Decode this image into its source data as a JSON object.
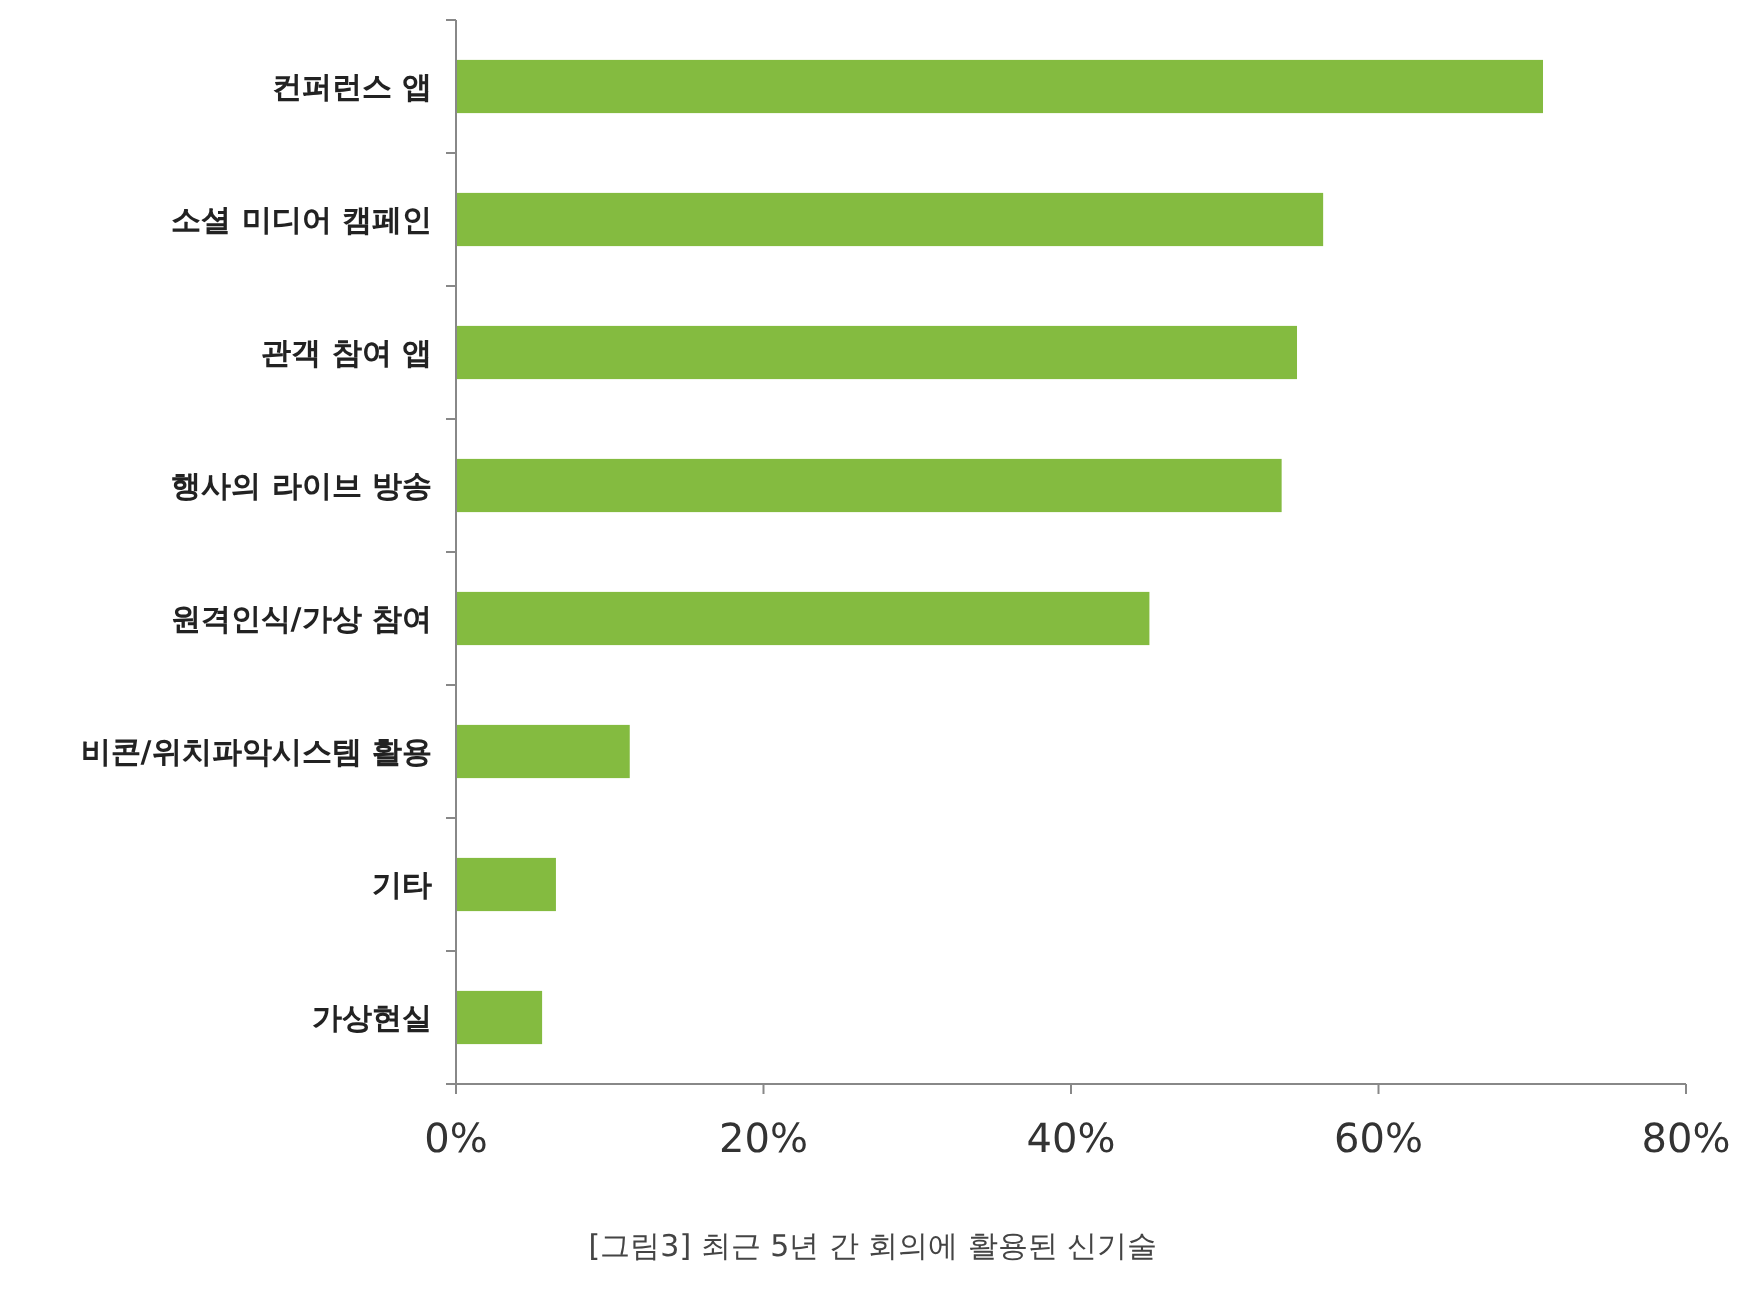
{
  "chart_data": {
    "type": "bar",
    "orientation": "horizontal",
    "categories": [
      "컨퍼런스 앱",
      "소셜 미디어 캠페인",
      "관객 참여 앱",
      "행사의 라이브 방송",
      "원격인식/가상 참여",
      "비콘/위치파악시스템 활용",
      "기타",
      "가상현실"
    ],
    "values": [
      70.7,
      56.4,
      54.7,
      53.7,
      45.1,
      11.3,
      6.5,
      5.6
    ],
    "color": "#84bb40",
    "xlim": [
      0,
      80
    ],
    "xticks": [
      {
        "value": 0,
        "label": "0%"
      },
      {
        "value": 20,
        "label": "20%"
      },
      {
        "value": 40,
        "label": "40%"
      },
      {
        "value": 60,
        "label": "60%"
      },
      {
        "value": 80,
        "label": "80%"
      }
    ],
    "grid": false,
    "annotations": [
      "[그림3] 최근 5년 간 회의에 활용된 신기술"
    ]
  }
}
